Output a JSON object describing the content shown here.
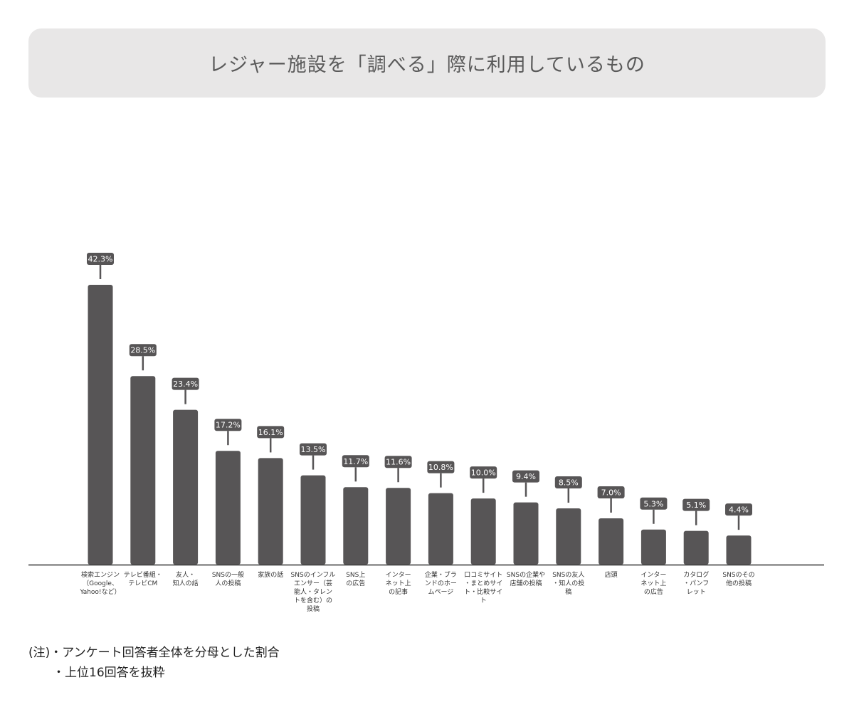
{
  "title": "レジャー施設を「調べる」際に利用しているもの",
  "notes": {
    "line1": "(注)・アンケート回答者全体を分母とした割合",
    "line2": "・上位16回答を抜粋"
  },
  "colors": {
    "bar": "#575556",
    "label_bg": "#575556",
    "label_text": "#ffffff",
    "axis": "#333333",
    "title_bg": "#e8e7e7"
  },
  "chart_data": {
    "type": "bar",
    "title": "レジャー施設を「調べる」際に利用しているもの",
    "unit": "%",
    "categories": [
      [
        "検索エンジン",
        "（Google、",
        "Yahoo!など）"
      ],
      [
        "テレビ番組・",
        "テレビCM"
      ],
      [
        "友人・",
        "知人の話"
      ],
      [
        "SNSの一般",
        "人の投稿"
      ],
      [
        "家族の話"
      ],
      [
        "SNSのインフル",
        "エンサー（芸",
        "能人・タレン",
        "トを含む）の",
        "投稿"
      ],
      [
        "SNS上",
        "の広告"
      ],
      [
        "インター",
        "ネット上",
        "の記事"
      ],
      [
        "企業・ブラ",
        "ンドのホー",
        "ムページ"
      ],
      [
        "口コミサイト",
        "・まとめサイ",
        "ト・比較サイ",
        "ト"
      ],
      [
        "SNSの企業や",
        "店舗の投稿"
      ],
      [
        "SNSの友人",
        "・知人の投",
        "稿"
      ],
      [
        "店頭"
      ],
      [
        "インター",
        "ネット上",
        "の広告"
      ],
      [
        "カタログ",
        "・パンフ",
        "レット"
      ],
      [
        "SNSのその",
        "他の投稿"
      ]
    ],
    "values": [
      42.3,
      28.5,
      23.4,
      17.2,
      16.1,
      13.5,
      11.7,
      11.6,
      10.8,
      10.0,
      9.4,
      8.5,
      7.0,
      5.3,
      5.1,
      4.4
    ],
    "value_labels": [
      "42.3%",
      "28.5%",
      "23.4%",
      "17.2%",
      "16.1%",
      "13.5%",
      "11.7%",
      "11.6%",
      "10.8%",
      "10.0%",
      "9.4%",
      "8.5%",
      "7.0%",
      "5.3%",
      "5.1%",
      "4.4%"
    ],
    "ylim": [
      0,
      42.3
    ],
    "grid": false,
    "legend": "none"
  }
}
